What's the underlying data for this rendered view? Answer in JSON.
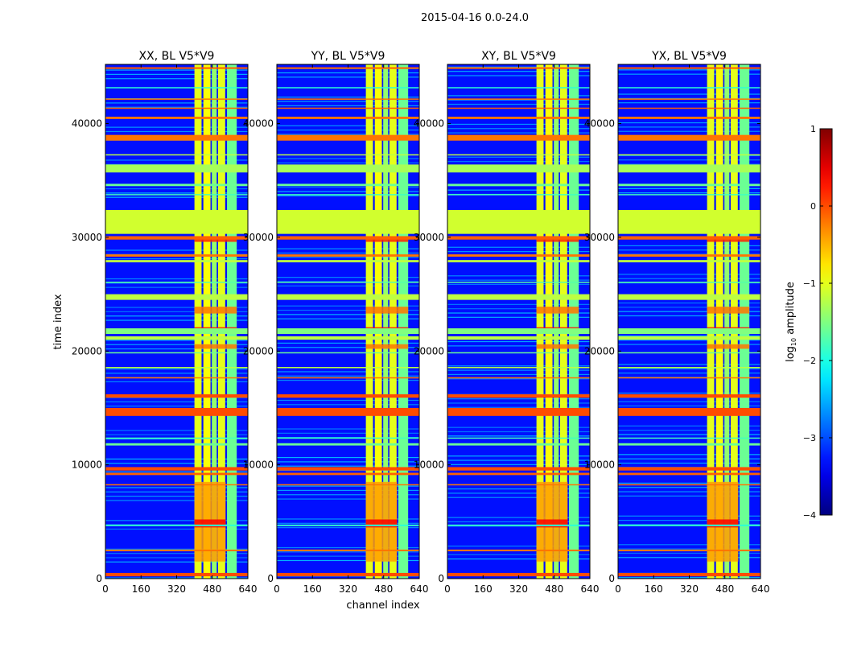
{
  "chart_data": {
    "type": "heatmap",
    "title": "2015-04-16 0.0-24.0",
    "panels": [
      {
        "title": "XX, BL V5*V9"
      },
      {
        "title": "YY, BL V5*V9"
      },
      {
        "title": "XY, BL V5*V9"
      },
      {
        "title": "YX, BL V5*V9"
      }
    ],
    "xlabel": "channel index",
    "ylabel": "time index",
    "xlim": [
      0,
      640
    ],
    "ylim": [
      0,
      45200
    ],
    "xticks": [
      0,
      160,
      320,
      480,
      640
    ],
    "yticks": [
      0,
      10000,
      20000,
      30000,
      40000
    ],
    "colorbar": {
      "label_prefix": "log",
      "label_sub": "10",
      "label_suffix": " amplitude",
      "range": [
        -4,
        1
      ],
      "ticks": [
        "1",
        "0",
        "−1",
        "−2",
        "−3",
        "−4"
      ],
      "tick_values": [
        1,
        0,
        -1,
        -2,
        -3,
        -4
      ],
      "colormap": "jet"
    },
    "background_log_amp": -3.3,
    "channel_bands": [
      {
        "from": 400,
        "to": 432,
        "log_amp": -1.0
      },
      {
        "from": 440,
        "to": 472,
        "log_amp": -0.9
      },
      {
        "from": 478,
        "to": 500,
        "log_amp": -1.4
      },
      {
        "from": 506,
        "to": 538,
        "log_amp": -1.0
      },
      {
        "from": 546,
        "to": 590,
        "log_amp": -1.6
      }
    ],
    "hot_patches": [
      {
        "ch_from": 400,
        "ch_to": 540,
        "t_from": 1500,
        "t_to": 8500,
        "log_amp": -0.4
      },
      {
        "ch_from": 400,
        "ch_to": 540,
        "t_from": 4500,
        "t_to": 5200,
        "log_amp": 0.4
      },
      {
        "ch_from": 400,
        "ch_to": 590,
        "t_from": 29600,
        "t_to": 30100,
        "log_amp": 0.2
      },
      {
        "ch_from": 400,
        "ch_to": 590,
        "t_from": 21800,
        "t_to": 22100,
        "log_amp": 0.3
      },
      {
        "ch_from": 400,
        "ch_to": 590,
        "t_from": 20200,
        "t_to": 20600,
        "log_amp": -0.2
      },
      {
        "ch_from": 400,
        "ch_to": 590,
        "t_from": 23300,
        "t_to": 23900,
        "log_amp": -0.2
      }
    ],
    "time_bands": [
      {
        "from": 200,
        "to": 500,
        "log_amp": 0.0
      },
      {
        "from": 2400,
        "to": 2550,
        "log_amp": -0.2
      },
      {
        "from": 4600,
        "to": 4750,
        "log_amp": -1.9
      },
      {
        "from": 8200,
        "to": 8300,
        "log_amp": -0.2
      },
      {
        "from": 9100,
        "to": 9300,
        "log_amp": -0.1
      },
      {
        "from": 9500,
        "to": 9800,
        "log_amp": 0.0
      },
      {
        "from": 11700,
        "to": 11900,
        "log_amp": -1.6
      },
      {
        "from": 12300,
        "to": 12400,
        "log_amp": -1.8
      },
      {
        "from": 14300,
        "to": 15000,
        "log_amp": 0.0
      },
      {
        "from": 15900,
        "to": 16200,
        "log_amp": 0.0
      },
      {
        "from": 17600,
        "to": 17700,
        "log_amp": -0.2
      },
      {
        "from": 18500,
        "to": 18600,
        "log_amp": -1.2
      },
      {
        "from": 19800,
        "to": 19900,
        "log_amp": -1.6
      },
      {
        "from": 21000,
        "to": 21300,
        "log_amp": -1.2
      },
      {
        "from": 21500,
        "to": 22000,
        "log_amp": -1.5
      },
      {
        "from": 24500,
        "to": 25000,
        "log_amp": -1.2
      },
      {
        "from": 26000,
        "to": 26100,
        "log_amp": -1.7
      },
      {
        "from": 27800,
        "to": 28000,
        "log_amp": -1.2
      },
      {
        "from": 28300,
        "to": 28500,
        "log_amp": -0.2
      },
      {
        "from": 29800,
        "to": 30100,
        "log_amp": -0.1
      },
      {
        "from": 30300,
        "to": 32400,
        "log_amp": -1.1
      },
      {
        "from": 33700,
        "to": 33800,
        "log_amp": -1.8
      },
      {
        "from": 34500,
        "to": 34700,
        "log_amp": -1.6
      },
      {
        "from": 35700,
        "to": 36400,
        "log_amp": -1.3
      },
      {
        "from": 37200,
        "to": 37300,
        "log_amp": -1.2
      },
      {
        "from": 38500,
        "to": 39000,
        "log_amp": -0.2
      },
      {
        "from": 40400,
        "to": 40600,
        "log_amp": -0.2
      },
      {
        "from": 41300,
        "to": 41400,
        "log_amp": -0.1
      },
      {
        "from": 42100,
        "to": 42200,
        "log_amp": -0.2
      },
      {
        "from": 43100,
        "to": 43200,
        "log_amp": -1.9
      },
      {
        "from": 44800,
        "to": 44950,
        "log_amp": -0.1
      }
    ]
  }
}
